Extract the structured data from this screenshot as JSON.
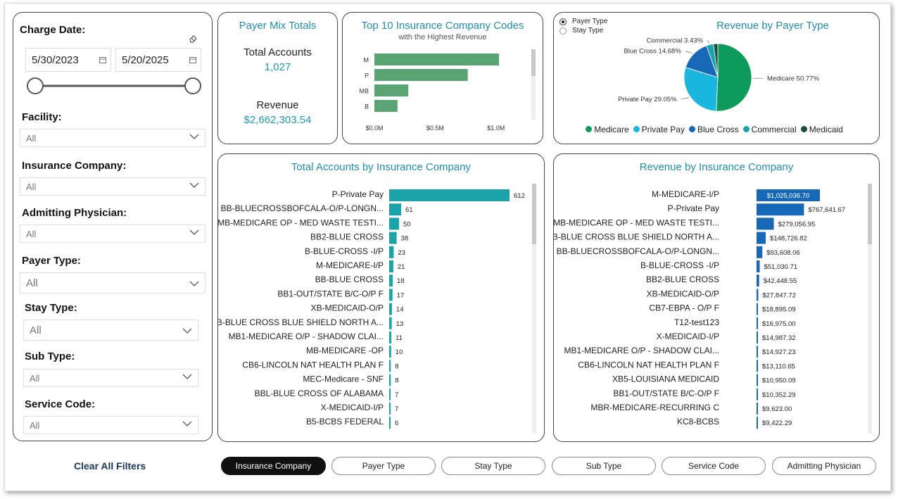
{
  "filters": {
    "charge_date_label": "Charge Date:",
    "start_date": "5/30/2023",
    "end_date": "5/20/2025",
    "facility": {
      "label": "Facility:",
      "value": "All"
    },
    "insurance_company": {
      "label": "Insurance Company:",
      "value": "All"
    },
    "admitting_physician": {
      "label": "Admitting Physician:",
      "value": "All"
    },
    "payer_type": {
      "label": "Payer Type:",
      "value": "All"
    },
    "stay_type": {
      "label": "Stay Type:",
      "value": "All"
    },
    "sub_type": {
      "label": "Sub Type:",
      "value": "All"
    },
    "service_code": {
      "label": "Service Code:",
      "value": "All"
    },
    "clear_all": "Clear All Filters"
  },
  "payer_mix": {
    "title": "Payer Mix Totals",
    "accounts_label": "Total Accounts",
    "accounts_value": "1,027",
    "revenue_label": "Revenue",
    "revenue_value": "$2,662,303.54"
  },
  "top10": {
    "title": "Top 10 Insurance Company Codes",
    "subtitle": "with the Highest Revenue",
    "chart_data": {
      "type": "bar",
      "categories": [
        "M",
        "P",
        "MB",
        "B"
      ],
      "values": [
        1.025,
        0.768,
        0.279,
        0.19
      ],
      "xlim": [
        0,
        1.1
      ],
      "ticks": [
        "$0.0M",
        "$0.5M",
        "$1.0M"
      ]
    }
  },
  "revenue_payer": {
    "title": "Revenue by Payer Type",
    "radio_options": [
      "Payer Type",
      "Stay Type"
    ],
    "radio_selected": "Payer Type",
    "chart_data": {
      "type": "pie",
      "labels": [
        "Medicare",
        "Private Pay",
        "Blue Cross",
        "Commercial",
        "Medicaid"
      ],
      "values": [
        50.77,
        29.05,
        14.68,
        3.43,
        2.07
      ],
      "data_labels": [
        "Medicare 50.77%",
        "Private Pay 29.05%",
        "Blue Cross 14.68%",
        "Commercial 3.43%",
        ""
      ]
    },
    "colors": [
      "#0e9a5a",
      "#19b6e0",
      "#1769b8",
      "#1aa3a8",
      "#1f4d3b"
    ]
  },
  "accounts_by_insurance": {
    "title": "Total Accounts by Insurance Company",
    "chart_data": {
      "type": "bar",
      "categories": [
        "P-Private Pay",
        "BB-BLUECROSSBOFCALA-O/P-LONGN...",
        "MB-MEDICARE OP - MED WASTE TESTI...",
        "BB2-BLUE CROSS",
        "B-BLUE-CROSS -I/P",
        "M-MEDICARE-I/P",
        "BB-BLUE CROSS",
        "BB1-OUT/STATE B/C-O/P F",
        "XB-MEDICAID-O/P",
        "B-BLUE CROSS BLUE SHIELD NORTH A...",
        "MB1-MEDICARE O/P - SHADOW CLAI...",
        "MB-MEDICARE -OP",
        "CB6-LINCOLN NAT HEALTH PLAN F",
        "MEC-Medicare - SNF",
        "BBL-BLUE CROSS OF ALABAMA",
        "X-MEDICAID-I/P",
        "B5-BCBS FEDERAL"
      ],
      "values": [
        612,
        61,
        50,
        38,
        23,
        21,
        18,
        17,
        14,
        13,
        11,
        10,
        8,
        8,
        7,
        7,
        6
      ],
      "max": 612
    }
  },
  "revenue_by_insurance": {
    "title": "Revenue by Insurance Company",
    "chart_data": {
      "type": "bar",
      "categories": [
        "M-MEDICARE-I/P",
        "P-Private Pay",
        "MB-MEDICARE OP - MED WASTE TESTI...",
        "B-BLUE CROSS BLUE SHIELD NORTH A...",
        "BB-BLUECROSSBOFCALA-O/P-LONGN...",
        "B-BLUE-CROSS -I/P",
        "BB2-BLUE CROSS",
        "XB-MEDICAID-O/P",
        "CB7-EBPA - O/P F",
        "T12-test123",
        "X-MEDICAID-I/P",
        "MB1-MEDICARE O/P - SHADOW CLAI...",
        "CB6-LINCOLN NAT HEALTH PLAN F",
        "XB5-LOUISIANA MEDICAID",
        "BB1-OUT/STATE B/C-O/P F",
        "MBR-MEDICARE-RECURRING C",
        "KC8-BCBS"
      ],
      "values": [
        1025036.7,
        767641.67,
        279056.95,
        148726.82,
        93608.06,
        51030.71,
        42448.55,
        27847.72,
        18895.09,
        16975.0,
        14987.32,
        14927.23,
        13110.65,
        10950.09,
        10352.29,
        9623.0,
        9422.29
      ],
      "labels": [
        "$1,025,036.70",
        "$767,641.67",
        "$279,056.95",
        "$148,726.82",
        "$93,608.06",
        "$51,030.71",
        "$42,448.55",
        "$27,847.72",
        "$18,895.09",
        "$16,975.00",
        "$14,987.32",
        "$14,927.23",
        "$13,110.65",
        "$10,950.09",
        "$10,352.29",
        "$9,623.00",
        "$9,422.29"
      ],
      "max": 1025036.7
    }
  },
  "tabs": [
    "Insurance Company",
    "Payer Type",
    "Stay Type",
    "Sub Type",
    "Service Code",
    "Admitting Physician"
  ],
  "active_tab": "Insurance Company"
}
